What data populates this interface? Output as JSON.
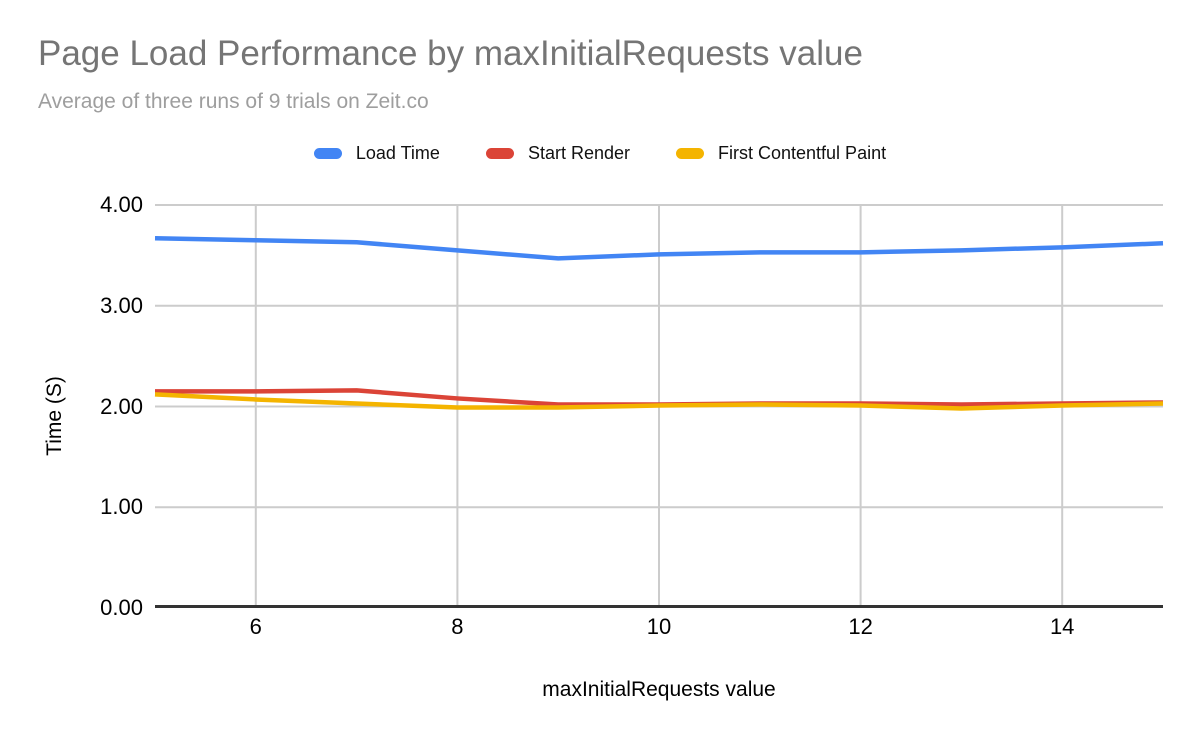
{
  "chart_data": {
    "type": "line",
    "title": "Page Load Performance by maxInitialRequests value",
    "subtitle": "Average of three runs of 9 trials on Zeit.co",
    "xlabel": "maxInitialRequests value",
    "ylabel": "Time (S)",
    "xlim": [
      5,
      15
    ],
    "ylim": [
      0,
      4
    ],
    "x_ticks": [
      6,
      8,
      10,
      12,
      14
    ],
    "y_ticks": [
      0,
      1,
      2,
      3,
      4
    ],
    "y_tick_labels": [
      "0.00",
      "1.00",
      "2.00",
      "3.00",
      "4.00"
    ],
    "grid": true,
    "legend_position": "top",
    "grid_color": "#cccccc",
    "baseline_color": "#333333",
    "x": [
      5,
      6,
      7,
      8,
      9,
      10,
      11,
      12,
      13,
      14,
      15
    ],
    "series": [
      {
        "name": "Load Time",
        "color": "#4285F4",
        "values": [
          3.67,
          3.65,
          3.63,
          3.55,
          3.47,
          3.51,
          3.53,
          3.53,
          3.55,
          3.58,
          3.62
        ]
      },
      {
        "name": "Start Render",
        "color": "#DB4437",
        "values": [
          2.15,
          2.15,
          2.16,
          2.08,
          2.02,
          2.02,
          2.03,
          2.03,
          2.02,
          2.03,
          2.04
        ]
      },
      {
        "name": "First Contentful Paint",
        "color": "#F4B400",
        "values": [
          2.12,
          2.07,
          2.03,
          1.99,
          1.99,
          2.01,
          2.02,
          2.01,
          1.98,
          2.01,
          2.03
        ]
      }
    ]
  }
}
